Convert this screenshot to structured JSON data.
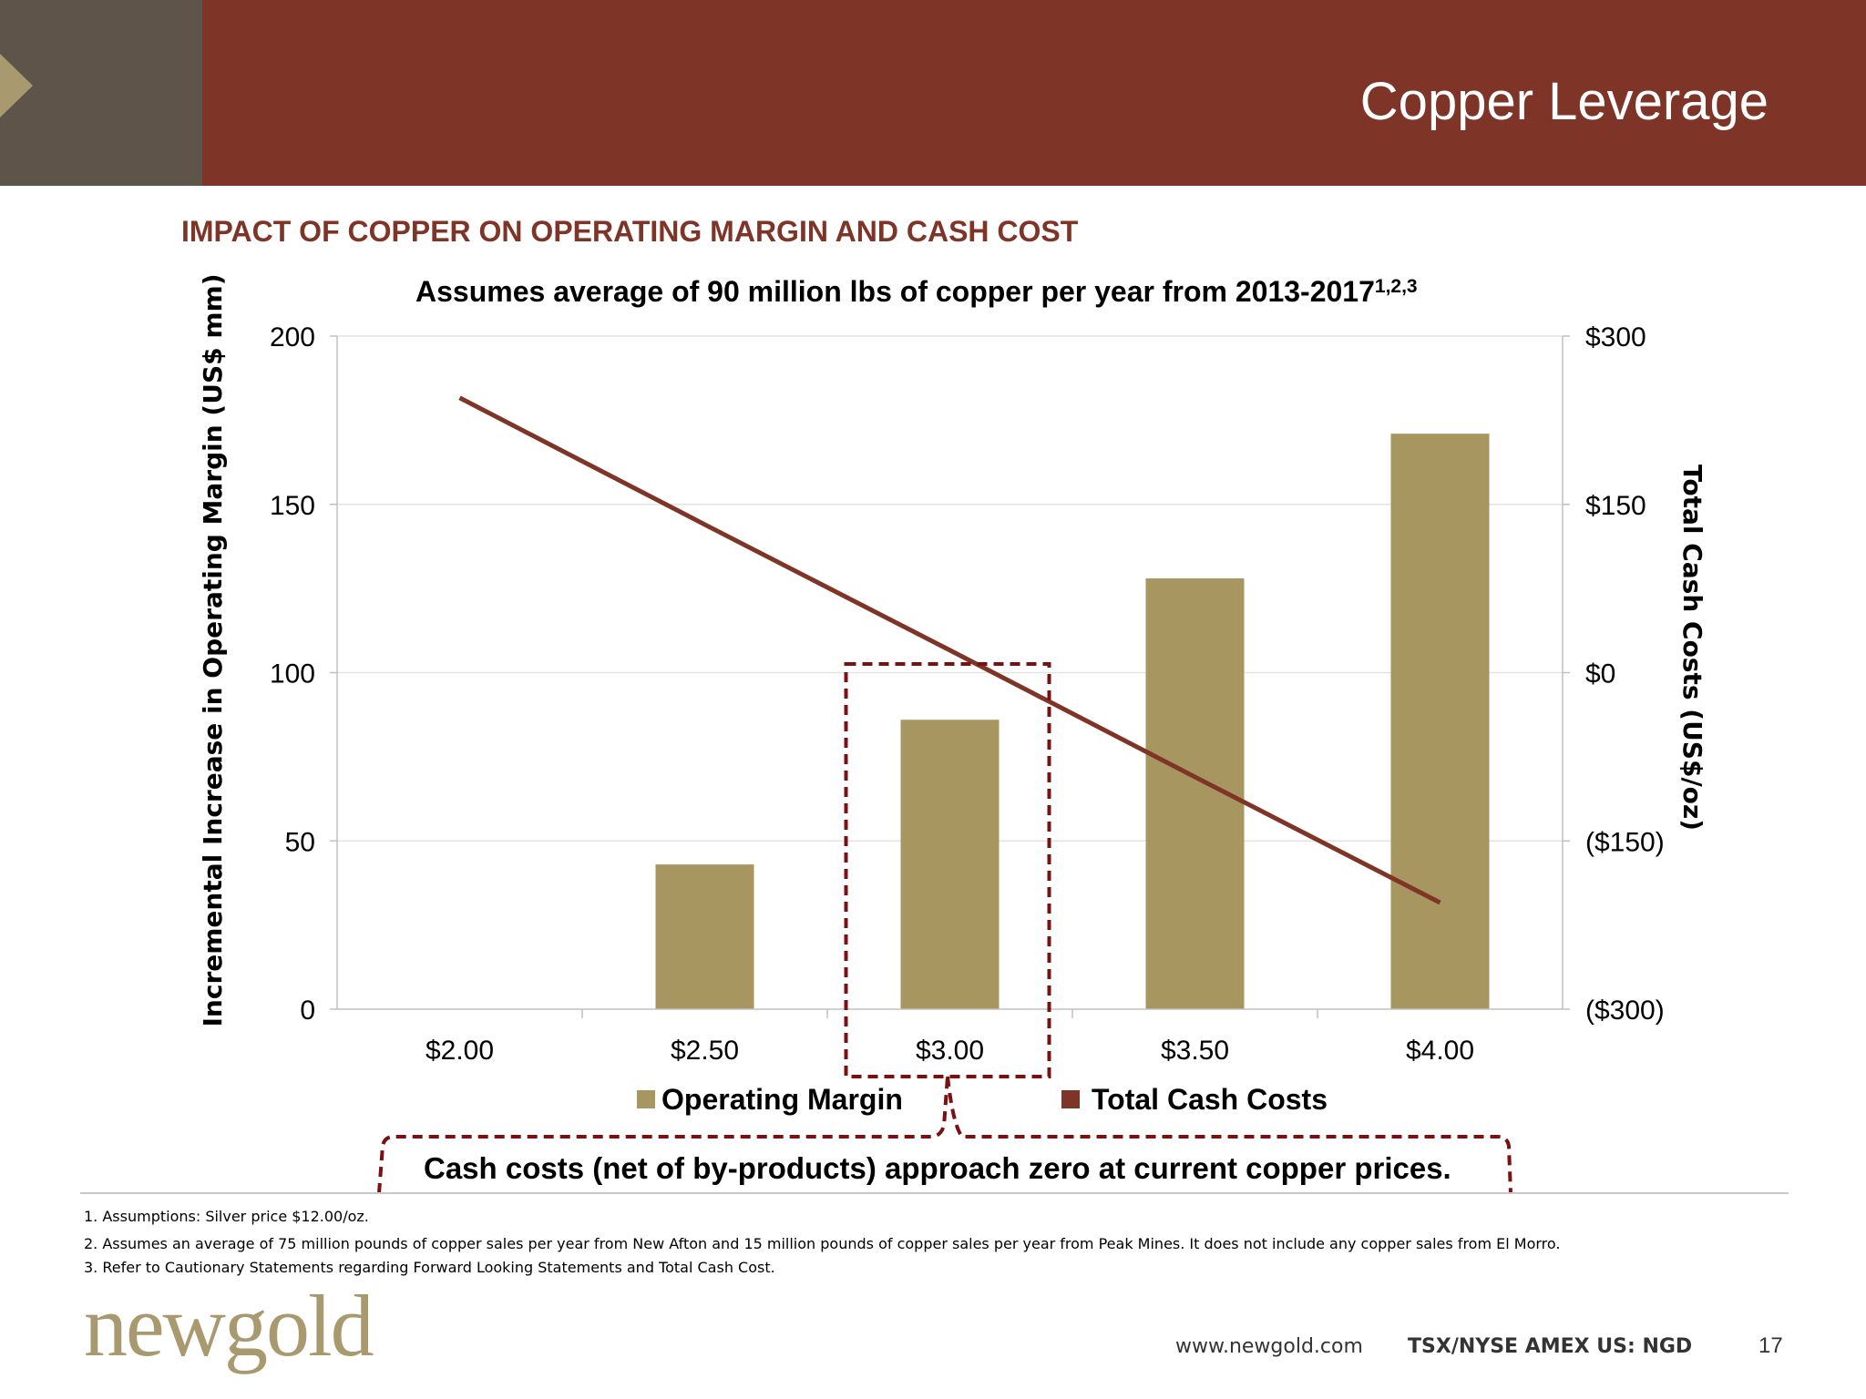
{
  "header": {
    "title": "Copper Leverage"
  },
  "section_heading": "IMPACT OF COPPER ON OPERATING MARGIN AND CASH COST",
  "chart_data": {
    "type": "bar",
    "subtitle": "Assumes average of 90 million lbs of copper per year from 2013-2017",
    "subtitle_superscript": "1,2,3",
    "categories": [
      "$2.00",
      "$2.50",
      "$3.00",
      "$3.50",
      "$4.00"
    ],
    "series": [
      {
        "name": "Operating Margin",
        "type": "bar",
        "axis": "left",
        "color": "#a89660",
        "values": [
          0,
          43,
          86,
          128,
          171
        ]
      },
      {
        "name": "Total Cash Costs",
        "type": "line",
        "axis": "right",
        "color": "#7e3426",
        "values": [
          245,
          132,
          20,
          -93,
          -205
        ]
      }
    ],
    "ylabel_left": "Incremental Increase in Operating Margin (US$ mm)",
    "ylabel_right": "Total Cash Costs (US$/oz)",
    "ylim_left": [
      0,
      200
    ],
    "yticks_left": [
      0,
      50,
      100,
      150,
      200
    ],
    "ytick_labels_left": [
      "0",
      "50",
      "100",
      "150",
      "200"
    ],
    "ylim_right": [
      -300,
      300
    ],
    "yticks_right": [
      -300,
      -150,
      0,
      150,
      300
    ],
    "ytick_labels_right": [
      "($300)",
      "($150)",
      "$0",
      "$150",
      "$300"
    ],
    "grid": true,
    "legend_position": "bottom",
    "highlighted_category": "$3.00",
    "callout": "Cash costs (net of by-products) approach zero at current copper prices."
  },
  "footnotes": [
    "1.  Assumptions: Silver price $12.00/oz.",
    "2.  Assumes an average of 75 million pounds of copper sales per year from New Afton and 15 million pounds of copper sales per year from Peak Mines. It does not include any copper sales from El Morro.",
    "3. Refer to Cautionary Statements regarding Forward Looking Statements and Total Cash Cost."
  ],
  "footer": {
    "logo_text": "newgold",
    "url": "www.newgold.com",
    "ticker": "TSX/NYSE AMEX US: NGD",
    "page_number": "17"
  },
  "colors": {
    "header_bar": "#7e3426",
    "header_block": "#5f544a",
    "accent_gold": "#a89a6e",
    "callout_border": "#7a1010"
  }
}
